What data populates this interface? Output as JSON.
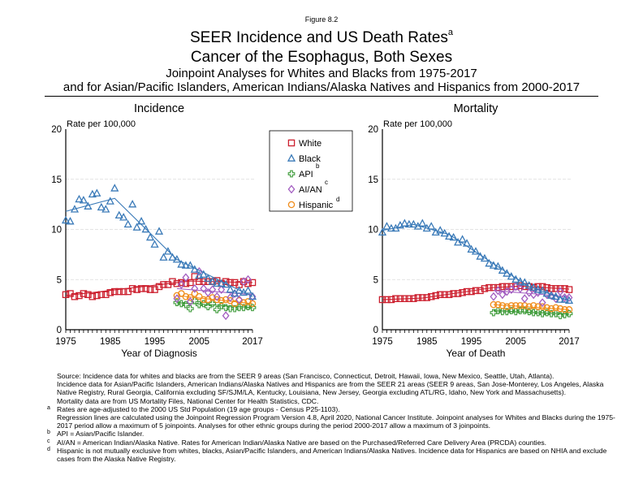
{
  "figure_label": "Figure 8.2",
  "title": {
    "line1": "SEER Incidence and US Death Rates",
    "line1_sup": "a",
    "line2": "Cancer of the Esophagus, Both Sexes",
    "line3": "Joinpoint Analyses for Whites and Blacks from 1975-2017",
    "line4": "and for Asian/Pacific Islanders, American Indians/Alaska Natives and Hispanics from 2000-2017"
  },
  "legend": {
    "items": [
      {
        "label": "White",
        "sup": "",
        "color": "#cc1f2e",
        "marker": "square"
      },
      {
        "label": "Black",
        "sup": "",
        "color": "#3a7ab8",
        "marker": "triangle"
      },
      {
        "label": "API",
        "sup": "b",
        "color": "#3e9b3a",
        "marker": "cross"
      },
      {
        "label": "AI/AN",
        "sup": "c",
        "color": "#a25cc0",
        "marker": "diamond"
      },
      {
        "label": "Hispanic",
        "sup": "d",
        "color": "#f08c1a",
        "marker": "circle"
      }
    ]
  },
  "chart_data": [
    {
      "type": "scatter",
      "title": "Incidence",
      "ylabel": "Rate per 100,000",
      "xlabel": "Year of Diagnosis",
      "ylim": [
        0,
        20
      ],
      "xlim": [
        1975,
        2017
      ],
      "yticks": [
        0,
        5,
        10,
        15,
        20
      ],
      "xticks": [
        1975,
        1985,
        1995,
        2005,
        2017
      ],
      "grid": true,
      "series": [
        {
          "name": "White",
          "start": 1975,
          "values": [
            3.5,
            3.6,
            3.3,
            3.4,
            3.6,
            3.5,
            3.3,
            3.4,
            3.5,
            3.5,
            3.7,
            3.8,
            3.8,
            3.8,
            3.8,
            4.1,
            4.0,
            4.1,
            4.1,
            4.0,
            4.0,
            4.3,
            4.5,
            4.5,
            4.8,
            4.6,
            4.7,
            4.6,
            4.7,
            5.3,
            4.8,
            4.8,
            4.8,
            4.8,
            4.9,
            4.6,
            4.8,
            4.7,
            4.7,
            4.5,
            4.8,
            4.6,
            4.7
          ],
          "trend": [
            [
              1975,
              3.4
            ],
            [
              2003,
              4.85
            ],
            [
              2017,
              4.7
            ]
          ]
        },
        {
          "name": "Black",
          "start": 1975,
          "values": [
            10.9,
            10.8,
            12.0,
            13.0,
            12.9,
            12.3,
            13.5,
            13.6,
            12.2,
            12.0,
            12.8,
            14.1,
            11.4,
            11.2,
            10.5,
            12.5,
            10.2,
            10.8,
            10.0,
            9.2,
            8.5,
            9.8,
            7.2,
            7.8,
            7.2,
            7.0,
            6.5,
            6.4,
            6.4,
            6.0,
            5.4,
            5.5,
            5.1,
            4.8,
            4.6,
            4.6,
            4.5,
            4.0,
            3.6,
            3.9,
            3.7,
            3.9,
            3.3
          ],
          "trend": [
            [
              1975,
              11.8
            ],
            [
              1986,
              13.1
            ],
            [
              2000,
              7.0
            ],
            [
              2017,
              3.3
            ]
          ]
        },
        {
          "name": "API",
          "start": 2000,
          "values": [
            2.7,
            2.6,
            2.5,
            2.1,
            2.9,
            2.5,
            2.6,
            2.3,
            2.6,
            2.0,
            2.4,
            2.2,
            2.1,
            2.1,
            2.2,
            2.2,
            2.3,
            2.2
          ],
          "trend": [
            [
              2000,
              2.7
            ],
            [
              2017,
              2.2
            ]
          ]
        },
        {
          "name": "AI/AN",
          "start": 2000,
          "values": [
            3.1,
            4.5,
            5.2,
            2.8,
            4.1,
            5.8,
            4.1,
            3.7,
            4.0,
            3.3,
            4.0,
            1.4,
            3.2,
            3.6,
            3.0,
            4.8,
            5.0,
            3.3
          ],
          "trend": [
            [
              2000,
              4.1
            ],
            [
              2017,
              3.5
            ]
          ]
        },
        {
          "name": "Hispanic",
          "start": 2000,
          "values": [
            3.4,
            3.6,
            3.3,
            3.2,
            3.6,
            3.3,
            3.0,
            3.0,
            3.2,
            3.0,
            2.9,
            3.0,
            2.9,
            2.6,
            2.9,
            2.7,
            2.8,
            2.6
          ],
          "trend": [
            [
              2000,
              3.4
            ],
            [
              2017,
              2.6
            ]
          ]
        }
      ]
    },
    {
      "type": "scatter",
      "title": "Mortality",
      "ylabel": "Rate per 100,000",
      "xlabel": "Year of Death",
      "ylim": [
        0,
        20
      ],
      "xlim": [
        1975,
        2017
      ],
      "yticks": [
        0,
        5,
        10,
        15,
        20
      ],
      "xticks": [
        1975,
        1985,
        1995,
        2005,
        2017
      ],
      "grid": true,
      "series": [
        {
          "name": "White",
          "start": 1975,
          "values": [
            3.0,
            3.0,
            3.0,
            3.1,
            3.1,
            3.1,
            3.1,
            3.1,
            3.2,
            3.2,
            3.2,
            3.3,
            3.4,
            3.5,
            3.5,
            3.5,
            3.6,
            3.6,
            3.7,
            3.8,
            3.8,
            3.9,
            3.9,
            4.1,
            4.2,
            4.2,
            4.2,
            4.3,
            4.3,
            4.3,
            4.3,
            4.4,
            4.3,
            4.3,
            4.2,
            4.3,
            4.3,
            4.2,
            4.1,
            4.1,
            4.1,
            4.1,
            4.0
          ],
          "trend": [
            [
              1975,
              3.0
            ],
            [
              1984,
              3.15
            ],
            [
              2000,
              4.2
            ],
            [
              2006,
              4.35
            ],
            [
              2017,
              4.05
            ]
          ]
        },
        {
          "name": "Black",
          "start": 1975,
          "values": [
            9.7,
            10.3,
            10.1,
            10.1,
            10.4,
            10.6,
            10.5,
            10.5,
            10.3,
            10.6,
            10.1,
            10.3,
            9.7,
            9.9,
            9.6,
            9.3,
            9.2,
            8.7,
            9.0,
            8.6,
            8.0,
            7.8,
            7.3,
            7.1,
            6.6,
            6.4,
            6.3,
            5.9,
            5.6,
            5.3,
            5.0,
            4.8,
            4.7,
            4.4,
            4.2,
            4.0,
            3.9,
            3.6,
            3.4,
            3.3,
            3.0,
            3.0,
            2.9
          ],
          "trend": [
            [
              1975,
              9.9
            ],
            [
              1982,
              10.5
            ],
            [
              1990,
              9.5
            ],
            [
              2002,
              6.0
            ],
            [
              2008,
              4.3
            ],
            [
              2017,
              2.9
            ]
          ]
        },
        {
          "name": "API",
          "start": 2000,
          "values": [
            1.7,
            1.9,
            1.8,
            1.8,
            1.9,
            1.8,
            1.9,
            1.9,
            1.8,
            1.7,
            1.7,
            1.6,
            1.7,
            1.6,
            1.6,
            1.4,
            1.5,
            1.6
          ],
          "trend": [
            [
              2000,
              1.9
            ],
            [
              2017,
              1.55
            ]
          ]
        },
        {
          "name": "AI/AN",
          "start": 2000,
          "values": [
            3.3,
            3.9,
            3.5,
            3.8,
            4.0,
            4.3,
            4.1,
            3.1,
            3.7,
            3.5,
            3.7,
            2.7,
            3.5,
            3.4,
            3.1,
            3.8,
            3.2,
            3.2
          ],
          "trend": [
            [
              2000,
              3.9
            ],
            [
              2017,
              3.3
            ]
          ]
        },
        {
          "name": "Hispanic",
          "start": 2000,
          "values": [
            2.5,
            2.5,
            2.4,
            2.3,
            2.4,
            2.4,
            2.4,
            2.4,
            2.3,
            2.4,
            2.3,
            2.3,
            2.2,
            2.1,
            2.2,
            2.1,
            2.0,
            2.0
          ],
          "trend": [
            [
              2000,
              2.5
            ],
            [
              2017,
              2.0
            ]
          ]
        }
      ]
    }
  ],
  "notes": [
    {
      "mark": "",
      "text": "Source:  Incidence data for whites and blacks are from the SEER 9 areas (San Francisco, Connecticut, Detroit, Hawaii, Iowa, New Mexico, Seattle, Utah, Atlanta)."
    },
    {
      "mark": "",
      "text": "Incidence data for Asian/Pacific Islanders, American Indians/Alaska Natives and Hispanics are from the SEER 21 areas (SEER 9 areas, San Jose-Monterey, Los Angeles, Alaska Native Registry, Rural Georgia, California excluding SF/SJM/LA, Kentucky, Louisiana, New Jersey, Georgia excluding ATL/RG, Idaho, New York and Massachusetts)."
    },
    {
      "mark": "",
      "text": "Mortality data are from US Mortality Files, National Center for Health Statistics, CDC."
    },
    {
      "mark": "a",
      "text": "Rates are age-adjusted to the 2000 US Std Population (19 age groups - Census P25-1103)."
    },
    {
      "mark": "",
      "text": "Regression lines are calculated using the Joinpoint Regression Program Version 4.8, April 2020, National Cancer Institute.  Joinpoint analyses for Whites and Blacks during the 1975-2017 period allow a maximum of 5 joinpoints. Analyses for other ethnic groups during the period 2000-2017 allow a maximum of 3 joinpoints."
    },
    {
      "mark": "b",
      "text": "API = Asian/Pacific Islander."
    },
    {
      "mark": "c",
      "text": "AI/AN = American Indian/Alaska Native.  Rates for American Indian/Alaska Native are based on the Purchased/Referred Care Delivery Area (PRCDA) counties."
    },
    {
      "mark": "d",
      "text": "Hispanic is not mutually exclusive from whites, blacks, Asian/Pacific Islanders, and American Indians/Alaska Natives.  Incidence data for Hispanics are based on NHIA and exclude cases from the Alaska Native Registry."
    }
  ]
}
